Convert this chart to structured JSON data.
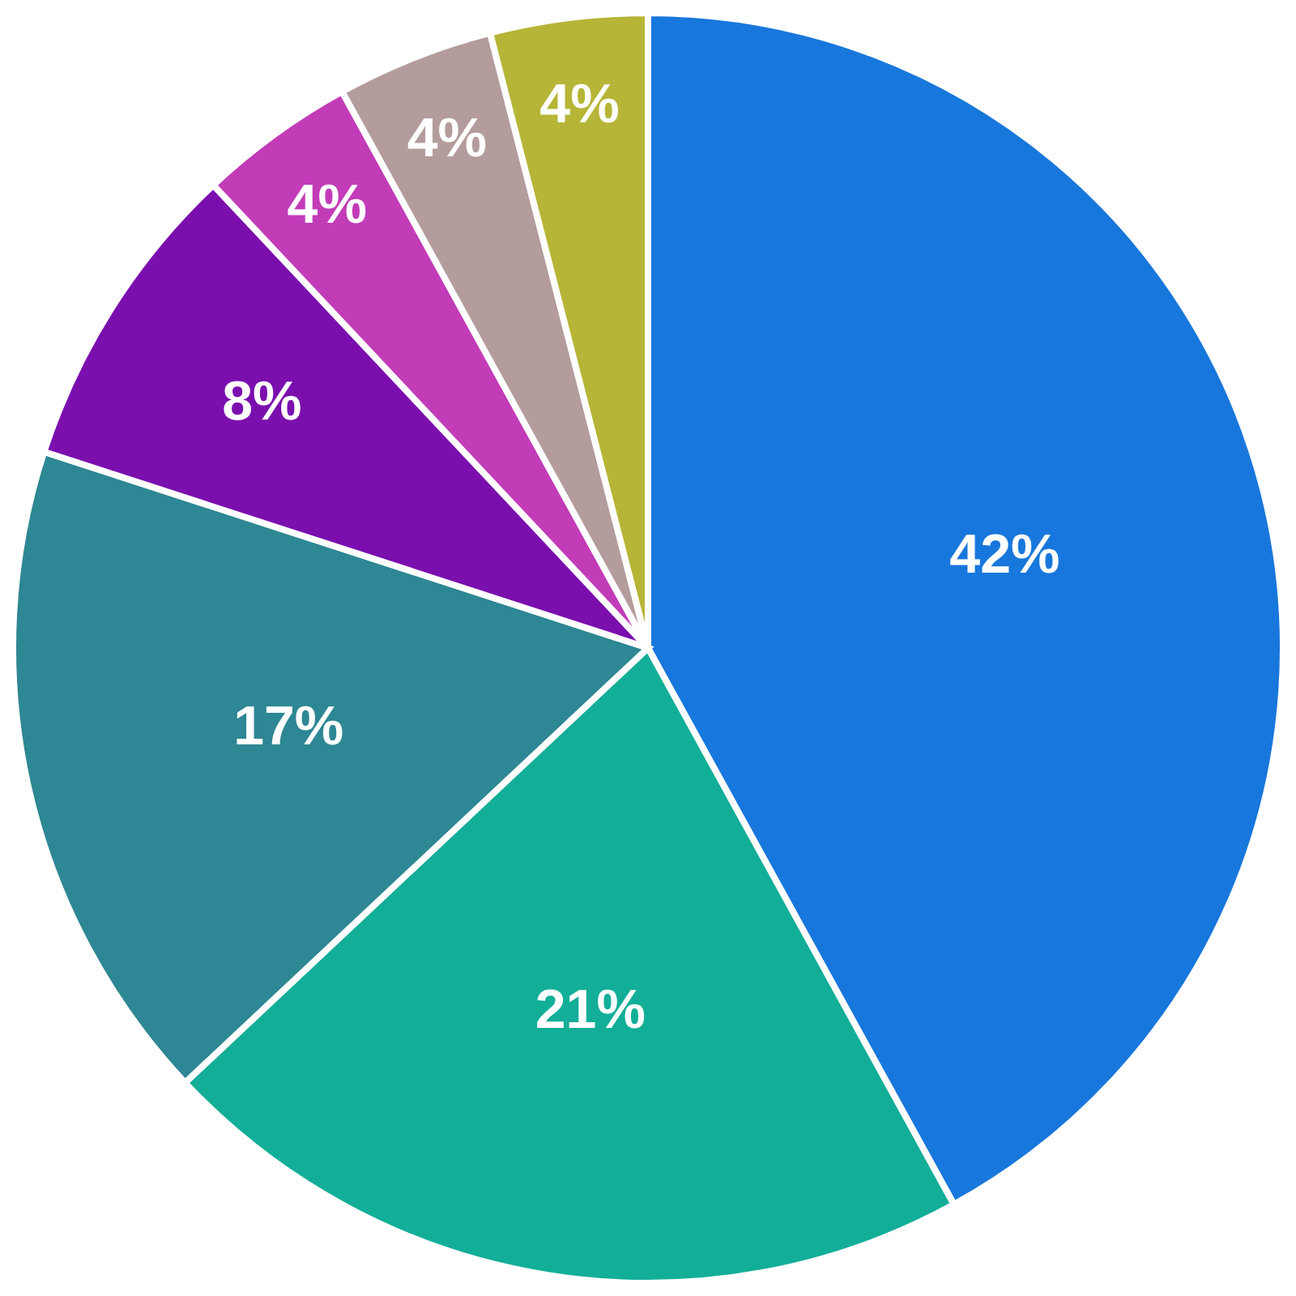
{
  "chart_data": {
    "type": "pie",
    "categories": [
      null,
      null,
      null,
      null,
      null,
      null,
      null
    ],
    "values": [
      42,
      21,
      17,
      8,
      4,
      4,
      4
    ],
    "colors": [
      "#1877dc",
      "#12ae98",
      "#2e8794",
      "#7a0fae",
      "#c23cb8",
      "#b49c9c",
      "#b6b537"
    ],
    "value_labels": [
      "42%",
      "21%",
      "17%",
      "8%",
      "4%",
      "4%",
      "4%"
    ],
    "legend": false
  }
}
